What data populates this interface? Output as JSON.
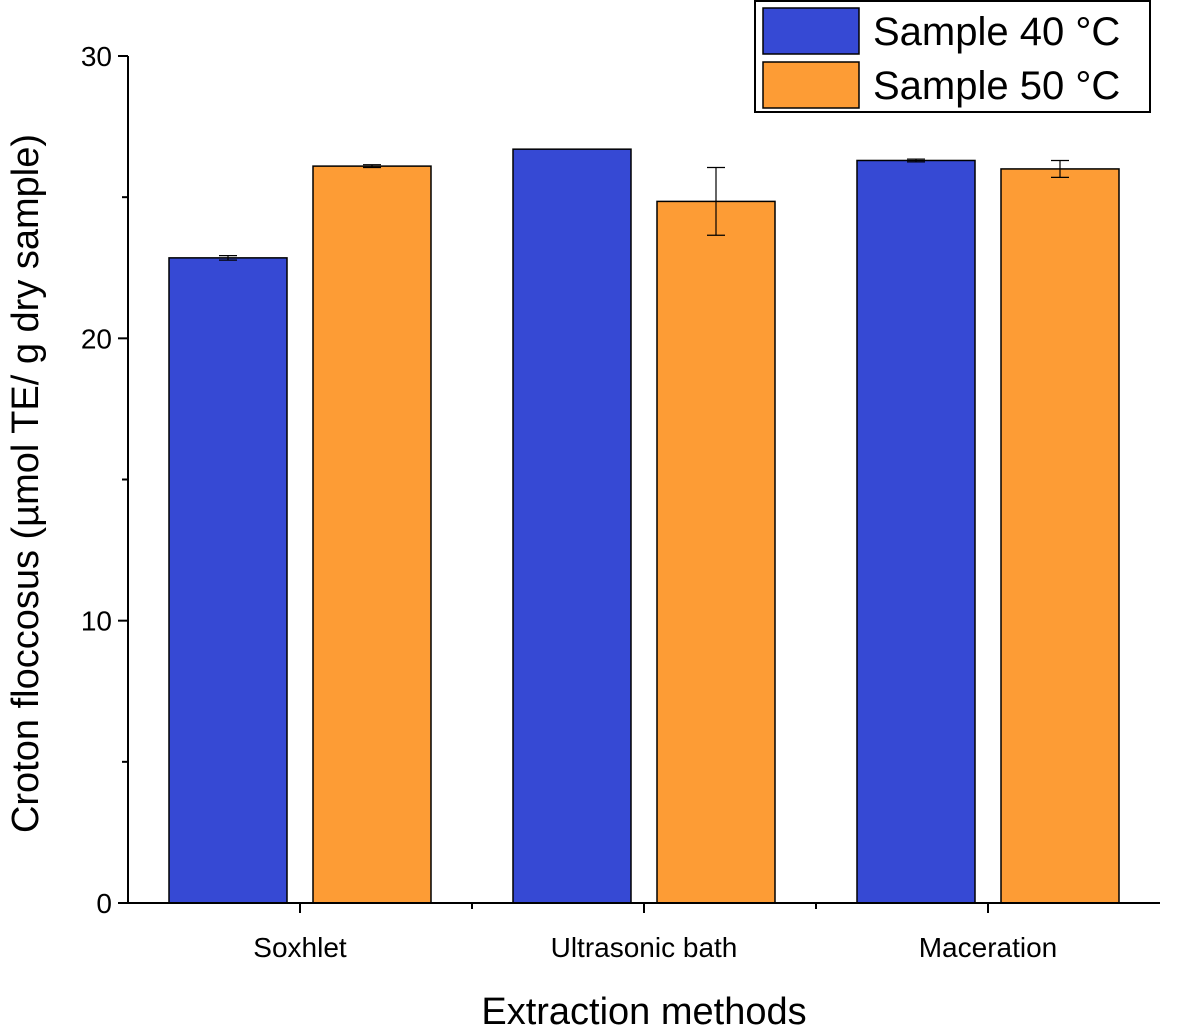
{
  "chart_data": {
    "type": "bar",
    "title": "",
    "xlabel": "Extraction methods",
    "ylabel": "Croton floccosus (µmol TE/ g dry sample)",
    "categories": [
      "Soxhlet",
      "Ultrasonic bath",
      "Maceration"
    ],
    "series": [
      {
        "name": "Sample 40 °C",
        "color": "#3649d4",
        "values": [
          22.85,
          26.7,
          26.3
        ],
        "errors": [
          0.08,
          0.0,
          0.05
        ]
      },
      {
        "name": "Sample 50 °C",
        "color": "#fd9c35",
        "values": [
          26.1,
          24.85,
          26.0
        ],
        "errors": [
          0.05,
          1.2,
          0.3
        ]
      }
    ],
    "ylim": [
      0,
      30
    ],
    "yticks": [
      0,
      10,
      20,
      30
    ],
    "grid": false,
    "legend": "top-right"
  }
}
